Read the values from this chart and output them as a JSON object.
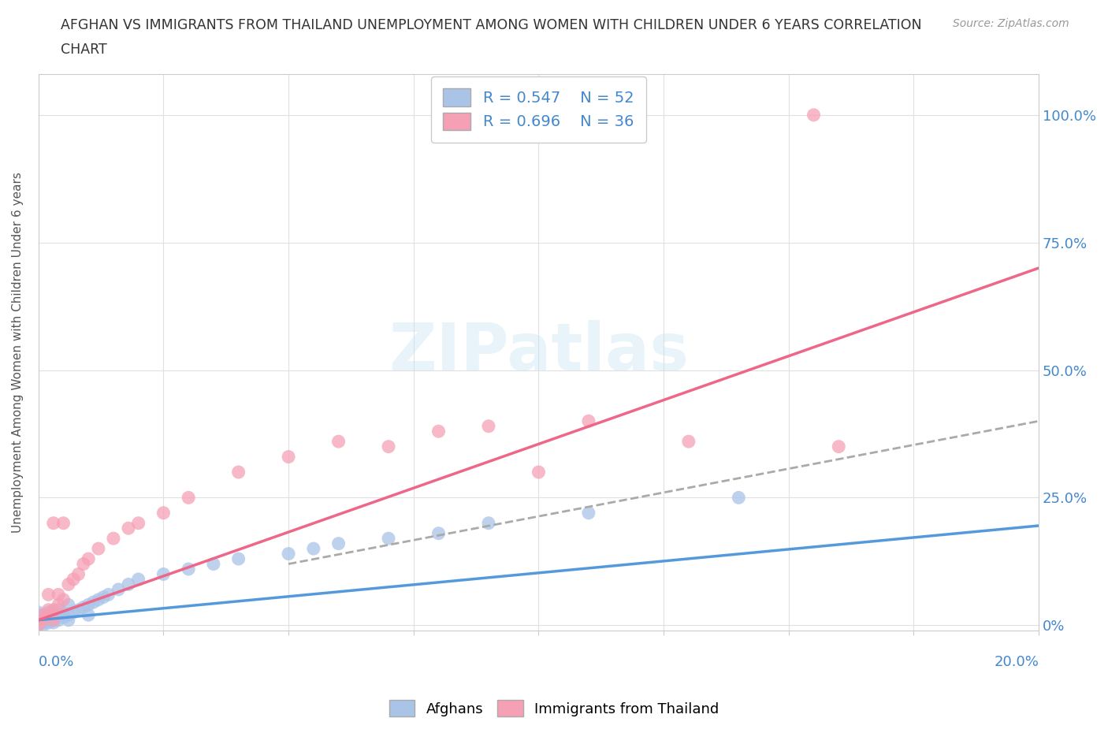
{
  "title_line1": "AFGHAN VS IMMIGRANTS FROM THAILAND UNEMPLOYMENT AMONG WOMEN WITH CHILDREN UNDER 6 YEARS CORRELATION",
  "title_line2": "CHART",
  "source": "Source: ZipAtlas.com",
  "ylabel": "Unemployment Among Women with Children Under 6 years",
  "yticks_right_vals": [
    0.0,
    0.25,
    0.5,
    0.75,
    1.0
  ],
  "ytick_labels": [
    "0%",
    "25.0%",
    "50.0%",
    "75.0%",
    "100.0%"
  ],
  "xmin": 0.0,
  "xmax": 0.2,
  "ymin": -0.01,
  "ymax": 1.08,
  "afghans_color": "#aac4e8",
  "thailand_color": "#f5a0b5",
  "afghans_line_color": "#5599dd",
  "thailand_line_color": "#ee6688",
  "dash_line_color": "#aaaaaa",
  "legend_R_afghans": "R = 0.547",
  "legend_N_afghans": "N = 52",
  "legend_R_thailand": "R = 0.696",
  "legend_N_thailand": "N = 36",
  "watermark": "ZIPatlas",
  "background_color": "#ffffff",
  "grid_color": "#e0e0e0",
  "title_color": "#333333",
  "axis_label_color": "#4488cc",
  "source_color": "#999999",
  "afghans_x": [
    0.0,
    0.0,
    0.0,
    0.0,
    0.0,
    0.0,
    0.001,
    0.001,
    0.001,
    0.001,
    0.001,
    0.002,
    0.002,
    0.002,
    0.002,
    0.002,
    0.003,
    0.003,
    0.003,
    0.003,
    0.004,
    0.004,
    0.004,
    0.005,
    0.005,
    0.006,
    0.006,
    0.006,
    0.007,
    0.008,
    0.009,
    0.01,
    0.01,
    0.011,
    0.012,
    0.013,
    0.014,
    0.016,
    0.018,
    0.02,
    0.025,
    0.03,
    0.035,
    0.04,
    0.05,
    0.055,
    0.06,
    0.07,
    0.08,
    0.09,
    0.11,
    0.14
  ],
  "afghans_y": [
    0.0,
    0.005,
    0.01,
    0.015,
    0.02,
    0.025,
    0.0,
    0.005,
    0.01,
    0.015,
    0.02,
    0.005,
    0.01,
    0.015,
    0.02,
    0.025,
    0.005,
    0.01,
    0.02,
    0.025,
    0.01,
    0.02,
    0.03,
    0.015,
    0.025,
    0.01,
    0.02,
    0.04,
    0.025,
    0.03,
    0.035,
    0.02,
    0.04,
    0.045,
    0.05,
    0.055,
    0.06,
    0.07,
    0.08,
    0.09,
    0.1,
    0.11,
    0.12,
    0.13,
    0.14,
    0.15,
    0.16,
    0.17,
    0.18,
    0.2,
    0.22,
    0.25
  ],
  "thailand_x": [
    0.0,
    0.0,
    0.001,
    0.001,
    0.002,
    0.002,
    0.002,
    0.003,
    0.003,
    0.003,
    0.004,
    0.004,
    0.005,
    0.005,
    0.006,
    0.007,
    0.008,
    0.009,
    0.01,
    0.012,
    0.015,
    0.018,
    0.02,
    0.025,
    0.03,
    0.04,
    0.05,
    0.06,
    0.07,
    0.08,
    0.09,
    0.1,
    0.11,
    0.13,
    0.155,
    0.16
  ],
  "thailand_y": [
    0.0,
    0.01,
    0.01,
    0.02,
    0.02,
    0.03,
    0.06,
    0.01,
    0.03,
    0.2,
    0.04,
    0.06,
    0.05,
    0.2,
    0.08,
    0.09,
    0.1,
    0.12,
    0.13,
    0.15,
    0.17,
    0.19,
    0.2,
    0.22,
    0.25,
    0.3,
    0.33,
    0.36,
    0.35,
    0.38,
    0.39,
    0.3,
    0.4,
    0.36,
    1.0,
    0.35
  ],
  "afghan_line_x0": 0.0,
  "afghan_line_y0": 0.01,
  "afghan_line_x1": 0.2,
  "afghan_line_y1": 0.195,
  "thai_line_x0": 0.0,
  "thai_line_y0": 0.01,
  "thai_line_x1": 0.2,
  "thai_line_y1": 0.7,
  "dash_line_x0": 0.05,
  "dash_line_y0": 0.12,
  "dash_line_x1": 0.2,
  "dash_line_y1": 0.4
}
